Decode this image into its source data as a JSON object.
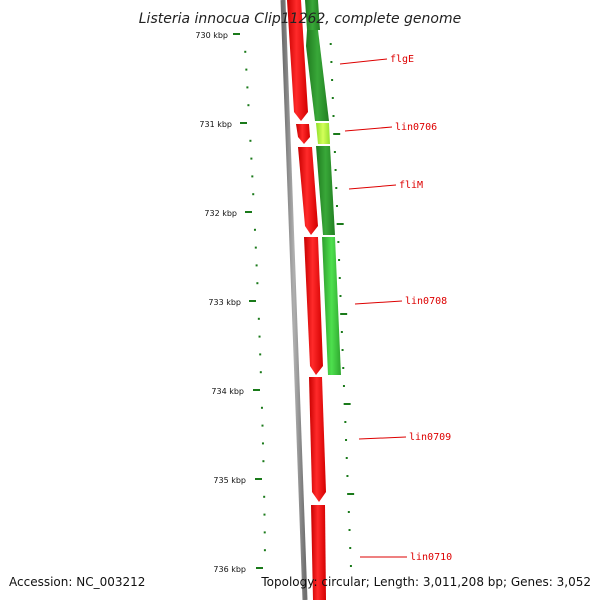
{
  "genome": {
    "title": "Listeria innocua Clip11262, complete genome",
    "accession_text": "Accession: NC_003212",
    "topology_text": "Topology: circular; Length: 3,011,208 bp; Genes: 3,052"
  },
  "ruler": {
    "labels": [
      "730 kbp",
      "731 kbp",
      "732 kbp",
      "733 kbp",
      "734 kbp",
      "735 kbp",
      "736 kbp"
    ]
  },
  "gene_labels": [
    "flgE",
    "lin0706",
    "fliM",
    "lin0708",
    "lin0709",
    "lin0710"
  ],
  "colors": {
    "backbone": "#8c8c8c",
    "forward_genes": "#ee0000",
    "reverse_genes": "#2e9a2e",
    "highlight_gene": "#b8ff3a",
    "ticks": "#1a7a1a",
    "labels": "#dd0000"
  }
}
